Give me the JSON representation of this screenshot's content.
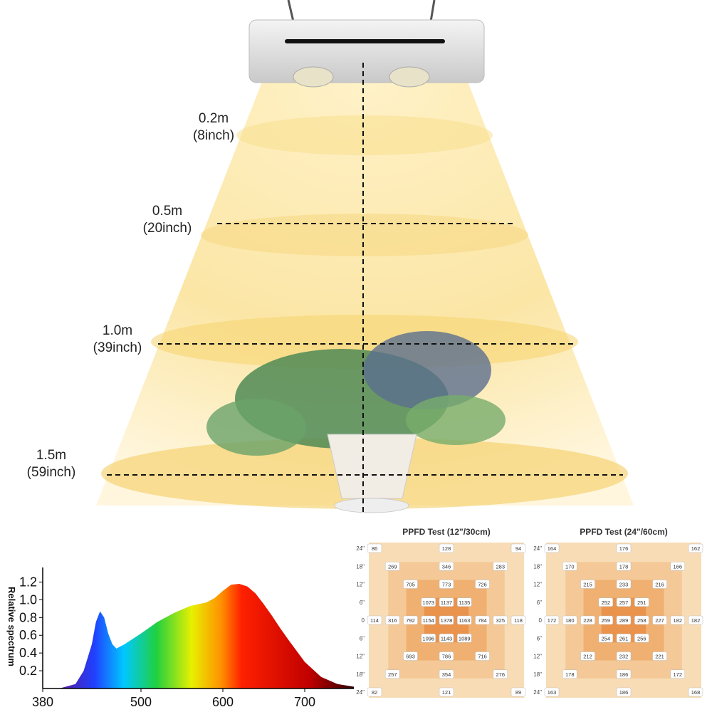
{
  "illustration": {
    "distances": [
      {
        "meters": "0.2m",
        "inches": "(8inch)"
      },
      {
        "meters": "0.5m",
        "inches": "(20inch)"
      },
      {
        "meters": "1.0m",
        "inches": "(39inch)"
      },
      {
        "meters": "1.5m",
        "inches": "(59inch)"
      }
    ]
  },
  "chart_data": [
    {
      "type": "area",
      "ylabel": "Relative spectrum",
      "x": [
        400,
        420,
        430,
        440,
        445,
        450,
        455,
        460,
        465,
        470,
        480,
        500,
        520,
        540,
        560,
        580,
        590,
        600,
        610,
        620,
        630,
        640,
        650,
        660,
        670,
        680,
        700,
        720,
        740,
        760
      ],
      "values": [
        0,
        0.05,
        0.2,
        0.5,
        0.75,
        0.87,
        0.8,
        0.62,
        0.5,
        0.45,
        0.5,
        0.62,
        0.75,
        0.85,
        0.93,
        0.97,
        1.02,
        1.1,
        1.17,
        1.18,
        1.15,
        1.07,
        0.95,
        0.82,
        0.68,
        0.55,
        0.3,
        0.13,
        0.05,
        0.02
      ],
      "xlim": [
        380,
        760
      ],
      "ylim": [
        0,
        1.3
      ],
      "xticks": [
        380,
        500,
        600,
        700
      ],
      "yticks": [
        {
          "value": 0.2,
          "label": "0.2"
        },
        {
          "value": 0.4,
          "label": "0.4"
        },
        {
          "value": 0.6,
          "label": "0.6"
        },
        {
          "value": 0.8,
          "label": "0.8"
        },
        {
          "value": 1.0,
          "label": "1.0"
        },
        {
          "value": 1.2,
          "label": "1.2"
        }
      ]
    },
    {
      "type": "grid-table",
      "title": "PPFD Test (12\"/30cm)",
      "row_labels": [
        "24\"",
        "18\"",
        "12\"",
        "6\"",
        "0",
        "6\"",
        "12\"",
        "18\"",
        "24\""
      ],
      "rows": [
        [
          86,
          null,
          null,
          null,
          128,
          null,
          null,
          null,
          94
        ],
        [
          null,
          269,
          null,
          null,
          346,
          null,
          null,
          283,
          null
        ],
        [
          null,
          null,
          705,
          null,
          773,
          null,
          726,
          null,
          null
        ],
        [
          null,
          null,
          null,
          1073,
          1137,
          1135,
          null,
          null,
          null
        ],
        [
          114,
          316,
          792,
          1154,
          1378,
          1163,
          784,
          325,
          118
        ],
        [
          null,
          null,
          null,
          1096,
          1143,
          1089,
          null,
          null,
          null
        ],
        [
          null,
          null,
          693,
          null,
          786,
          null,
          716,
          null,
          null
        ],
        [
          null,
          257,
          null,
          null,
          354,
          null,
          null,
          276,
          null
        ],
        [
          82,
          null,
          null,
          null,
          121,
          null,
          null,
          null,
          89
        ]
      ]
    },
    {
      "type": "grid-table",
      "title": "PPFD Test (24\"/60cm)",
      "row_labels": [
        "24\"",
        "18\"",
        "12\"",
        "6\"",
        "0",
        "6\"",
        "12\"",
        "18\"",
        "24\""
      ],
      "rows": [
        [
          164,
          null,
          null,
          null,
          176,
          null,
          null,
          null,
          162
        ],
        [
          null,
          170,
          null,
          null,
          178,
          null,
          null,
          166,
          null
        ],
        [
          null,
          null,
          215,
          null,
          233,
          null,
          216,
          null,
          null
        ],
        [
          null,
          null,
          null,
          252,
          257,
          251,
          null,
          null,
          null
        ],
        [
          172,
          180,
          228,
          259,
          289,
          258,
          227,
          182,
          182
        ],
        [
          null,
          null,
          null,
          254,
          261,
          256,
          null,
          null,
          null
        ],
        [
          null,
          null,
          212,
          null,
          232,
          null,
          221,
          null,
          null
        ],
        [
          null,
          178,
          null,
          null,
          186,
          null,
          null,
          172,
          null
        ],
        [
          163,
          null,
          null,
          null,
          186,
          null,
          null,
          null,
          168
        ]
      ]
    }
  ]
}
